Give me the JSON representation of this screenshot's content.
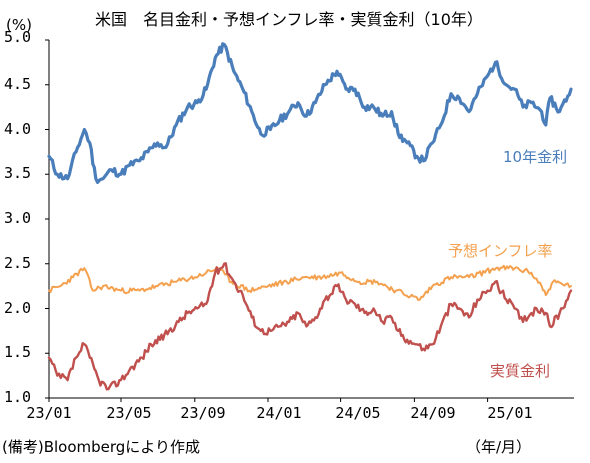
{
  "chart_data": {
    "type": "line",
    "title": "米国　名目金利・予想インフレ率・実質金利（10年）",
    "y_unit": "(%)",
    "x_unit": "（年/月）",
    "ylim": [
      1.0,
      5.0
    ],
    "y_ticks": [
      "5.0",
      "4.5",
      "4.0",
      "3.5",
      "3.0",
      "2.5",
      "2.0",
      "1.5",
      "1.0"
    ],
    "x_ticks": [
      "23/01",
      "23/05",
      "23/09",
      "24/01",
      "24/05",
      "24/09",
      "25/01"
    ],
    "grid": false,
    "legend": "inline labels",
    "source": "(備考)Bloombergにより作成",
    "series": [
      {
        "name": "10年金利",
        "color": "#4a7ebb",
        "x": [
          "2023-01-01",
          "2023-01-15",
          "2023-02-01",
          "2023-02-15",
          "2023-03-01",
          "2023-03-10",
          "2023-03-20",
          "2023-04-01",
          "2023-04-15",
          "2023-05-01",
          "2023-05-15",
          "2023-06-01",
          "2023-06-15",
          "2023-07-01",
          "2023-07-15",
          "2023-08-01",
          "2023-08-20",
          "2023-09-05",
          "2023-09-20",
          "2023-10-05",
          "2023-10-20",
          "2023-11-05",
          "2023-11-20",
          "2023-12-05",
          "2023-12-20",
          "2024-01-05",
          "2024-01-20",
          "2024-02-05",
          "2024-02-20",
          "2024-03-05",
          "2024-03-20",
          "2024-04-05",
          "2024-04-25",
          "2024-05-10",
          "2024-05-25",
          "2024-06-10",
          "2024-06-25",
          "2024-07-10",
          "2024-07-25",
          "2024-08-05",
          "2024-08-20",
          "2024-09-05",
          "2024-09-16",
          "2024-10-01",
          "2024-10-15",
          "2024-11-01",
          "2024-11-15",
          "2024-12-01",
          "2024-12-15",
          "2025-01-01",
          "2025-01-14",
          "2025-02-01",
          "2025-02-15",
          "2025-03-01",
          "2025-03-15",
          "2025-04-01",
          "2025-04-08",
          "2025-04-15",
          "2025-05-01",
          "2025-05-20"
        ],
        "values": [
          3.7,
          3.5,
          3.45,
          3.75,
          4.0,
          3.85,
          3.45,
          3.45,
          3.55,
          3.5,
          3.6,
          3.65,
          3.75,
          3.85,
          3.8,
          4.05,
          4.25,
          4.3,
          4.45,
          4.8,
          4.95,
          4.65,
          4.45,
          4.2,
          3.95,
          4.0,
          4.1,
          4.2,
          4.3,
          4.15,
          4.3,
          4.5,
          4.65,
          4.45,
          4.45,
          4.25,
          4.25,
          4.15,
          4.2,
          3.95,
          3.85,
          3.7,
          3.65,
          3.85,
          4.05,
          4.4,
          4.35,
          4.2,
          4.4,
          4.6,
          4.75,
          4.5,
          4.45,
          4.25,
          4.3,
          4.2,
          4.05,
          4.35,
          4.2,
          4.45
        ]
      },
      {
        "name": "予想インフレ率",
        "color": "#f4a14f",
        "x": [
          "2023-01-01",
          "2023-01-20",
          "2023-02-10",
          "2023-03-01",
          "2023-03-15",
          "2023-04-01",
          "2023-05-01",
          "2023-06-01",
          "2023-07-01",
          "2023-08-01",
          "2023-09-01",
          "2023-09-20",
          "2023-10-10",
          "2023-11-01",
          "2023-12-01",
          "2024-01-01",
          "2024-02-01",
          "2024-03-01",
          "2024-04-01",
          "2024-05-01",
          "2024-06-01",
          "2024-07-01",
          "2024-08-01",
          "2024-09-10",
          "2024-10-01",
          "2024-11-01",
          "2024-12-01",
          "2025-01-15",
          "2025-02-15",
          "2025-03-15",
          "2025-04-01",
          "2025-04-08",
          "2025-04-20",
          "2025-05-20"
        ],
        "values": [
          2.2,
          2.25,
          2.35,
          2.45,
          2.2,
          2.25,
          2.2,
          2.2,
          2.25,
          2.3,
          2.35,
          2.4,
          2.45,
          2.3,
          2.2,
          2.25,
          2.3,
          2.35,
          2.35,
          2.4,
          2.3,
          2.3,
          2.2,
          2.1,
          2.25,
          2.35,
          2.35,
          2.45,
          2.45,
          2.4,
          2.25,
          2.15,
          2.3,
          2.25
        ]
      },
      {
        "name": "実質金利",
        "color": "#c0504d",
        "x": [
          "2023-01-01",
          "2023-01-15",
          "2023-02-01",
          "2023-02-15",
          "2023-03-01",
          "2023-03-10",
          "2023-03-25",
          "2023-04-10",
          "2023-05-01",
          "2023-05-20",
          "2023-06-05",
          "2023-06-20",
          "2023-07-05",
          "2023-07-20",
          "2023-08-05",
          "2023-08-20",
          "2023-09-05",
          "2023-09-20",
          "2023-10-05",
          "2023-10-20",
          "2023-11-05",
          "2023-11-20",
          "2023-12-05",
          "2023-12-20",
          "2024-01-05",
          "2024-01-20",
          "2024-02-05",
          "2024-02-20",
          "2024-03-05",
          "2024-03-20",
          "2024-04-05",
          "2024-04-25",
          "2024-05-10",
          "2024-05-25",
          "2024-06-10",
          "2024-06-25",
          "2024-07-10",
          "2024-07-25",
          "2024-08-05",
          "2024-08-20",
          "2024-09-05",
          "2024-09-16",
          "2024-10-01",
          "2024-10-15",
          "2024-11-01",
          "2024-11-15",
          "2024-12-01",
          "2024-12-15",
          "2025-01-01",
          "2025-01-14",
          "2025-02-01",
          "2025-02-15",
          "2025-03-01",
          "2025-03-15",
          "2025-04-01",
          "2025-04-08",
          "2025-04-15",
          "2025-05-01",
          "2025-05-20"
        ],
        "values": [
          1.45,
          1.25,
          1.2,
          1.45,
          1.6,
          1.45,
          1.2,
          1.1,
          1.2,
          1.35,
          1.45,
          1.6,
          1.65,
          1.75,
          1.85,
          1.95,
          2.0,
          2.05,
          2.4,
          2.5,
          2.3,
          2.15,
          1.9,
          1.75,
          1.75,
          1.8,
          1.85,
          1.95,
          1.8,
          1.9,
          2.1,
          2.25,
          2.1,
          2.05,
          1.95,
          2.0,
          1.85,
          1.9,
          1.75,
          1.65,
          1.6,
          1.55,
          1.6,
          1.8,
          2.05,
          2.0,
          1.9,
          2.1,
          2.2,
          2.3,
          2.1,
          2.0,
          1.85,
          1.95,
          2.0,
          1.95,
          1.8,
          1.95,
          2.2
        ]
      }
    ]
  }
}
